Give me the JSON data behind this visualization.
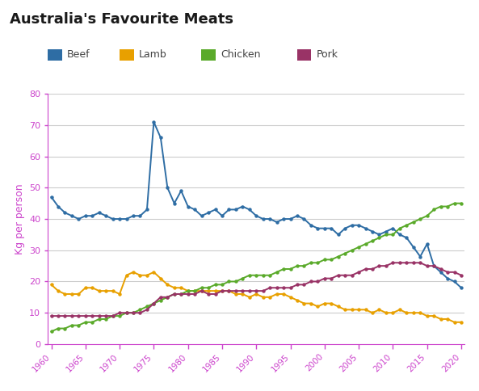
{
  "title": "Australia's Favourite Meats",
  "ylabel": "Kg per person",
  "title_color": "#1a1a1a",
  "axis_color": "#cc44cc",
  "grid_color": "#cccccc",
  "years": [
    1960,
    1961,
    1962,
    1963,
    1964,
    1965,
    1966,
    1967,
    1968,
    1969,
    1970,
    1971,
    1972,
    1973,
    1974,
    1975,
    1976,
    1977,
    1978,
    1979,
    1980,
    1981,
    1982,
    1983,
    1984,
    1985,
    1986,
    1987,
    1988,
    1989,
    1990,
    1991,
    1992,
    1993,
    1994,
    1995,
    1996,
    1997,
    1998,
    1999,
    2000,
    2001,
    2002,
    2003,
    2004,
    2005,
    2006,
    2007,
    2008,
    2009,
    2010,
    2011,
    2012,
    2013,
    2014,
    2015,
    2016,
    2017,
    2018,
    2019,
    2020
  ],
  "beef": [
    47,
    44,
    42,
    41,
    40,
    41,
    41,
    42,
    41,
    40,
    40,
    40,
    41,
    41,
    43,
    71,
    66,
    50,
    45,
    49,
    44,
    43,
    41,
    42,
    43,
    41,
    43,
    43,
    44,
    43,
    41,
    40,
    40,
    39,
    40,
    40,
    41,
    40,
    38,
    37,
    37,
    37,
    35,
    37,
    38,
    38,
    37,
    36,
    35,
    36,
    37,
    35,
    34,
    31,
    28,
    32,
    25,
    23,
    21,
    20,
    18
  ],
  "lamb": [
    19,
    17,
    16,
    16,
    16,
    18,
    18,
    17,
    17,
    17,
    16,
    22,
    23,
    22,
    22,
    23,
    21,
    19,
    18,
    18,
    17,
    17,
    17,
    17,
    17,
    17,
    17,
    16,
    16,
    15,
    16,
    15,
    15,
    16,
    16,
    15,
    14,
    13,
    13,
    12,
    13,
    13,
    12,
    11,
    11,
    11,
    11,
    10,
    11,
    10,
    10,
    11,
    10,
    10,
    10,
    9,
    9,
    8,
    8,
    7,
    7
  ],
  "chicken": [
    4,
    5,
    5,
    6,
    6,
    7,
    7,
    8,
    8,
    9,
    9,
    10,
    10,
    11,
    12,
    13,
    14,
    15,
    16,
    16,
    17,
    17,
    18,
    18,
    19,
    19,
    20,
    20,
    21,
    22,
    22,
    22,
    22,
    23,
    24,
    24,
    25,
    25,
    26,
    26,
    27,
    27,
    28,
    29,
    30,
    31,
    32,
    33,
    34,
    35,
    35,
    37,
    38,
    39,
    40,
    41,
    43,
    44,
    44,
    45,
    45
  ],
  "pork": [
    9,
    9,
    9,
    9,
    9,
    9,
    9,
    9,
    9,
    9,
    10,
    10,
    10,
    10,
    11,
    13,
    15,
    15,
    16,
    16,
    16,
    16,
    17,
    16,
    16,
    17,
    17,
    17,
    17,
    17,
    17,
    17,
    18,
    18,
    18,
    18,
    19,
    19,
    20,
    20,
    21,
    21,
    22,
    22,
    22,
    23,
    24,
    24,
    25,
    25,
    26,
    26,
    26,
    26,
    26,
    25,
    25,
    24,
    23,
    23,
    22
  ],
  "beef_color": "#2e6da4",
  "lamb_color": "#e8a000",
  "chicken_color": "#5aaa2a",
  "pork_color": "#993366",
  "ylim": [
    0,
    80
  ],
  "yticks": [
    0,
    10,
    20,
    30,
    40,
    50,
    60,
    70,
    80
  ],
  "xlim_min": 1960,
  "xlim_max": 2020
}
